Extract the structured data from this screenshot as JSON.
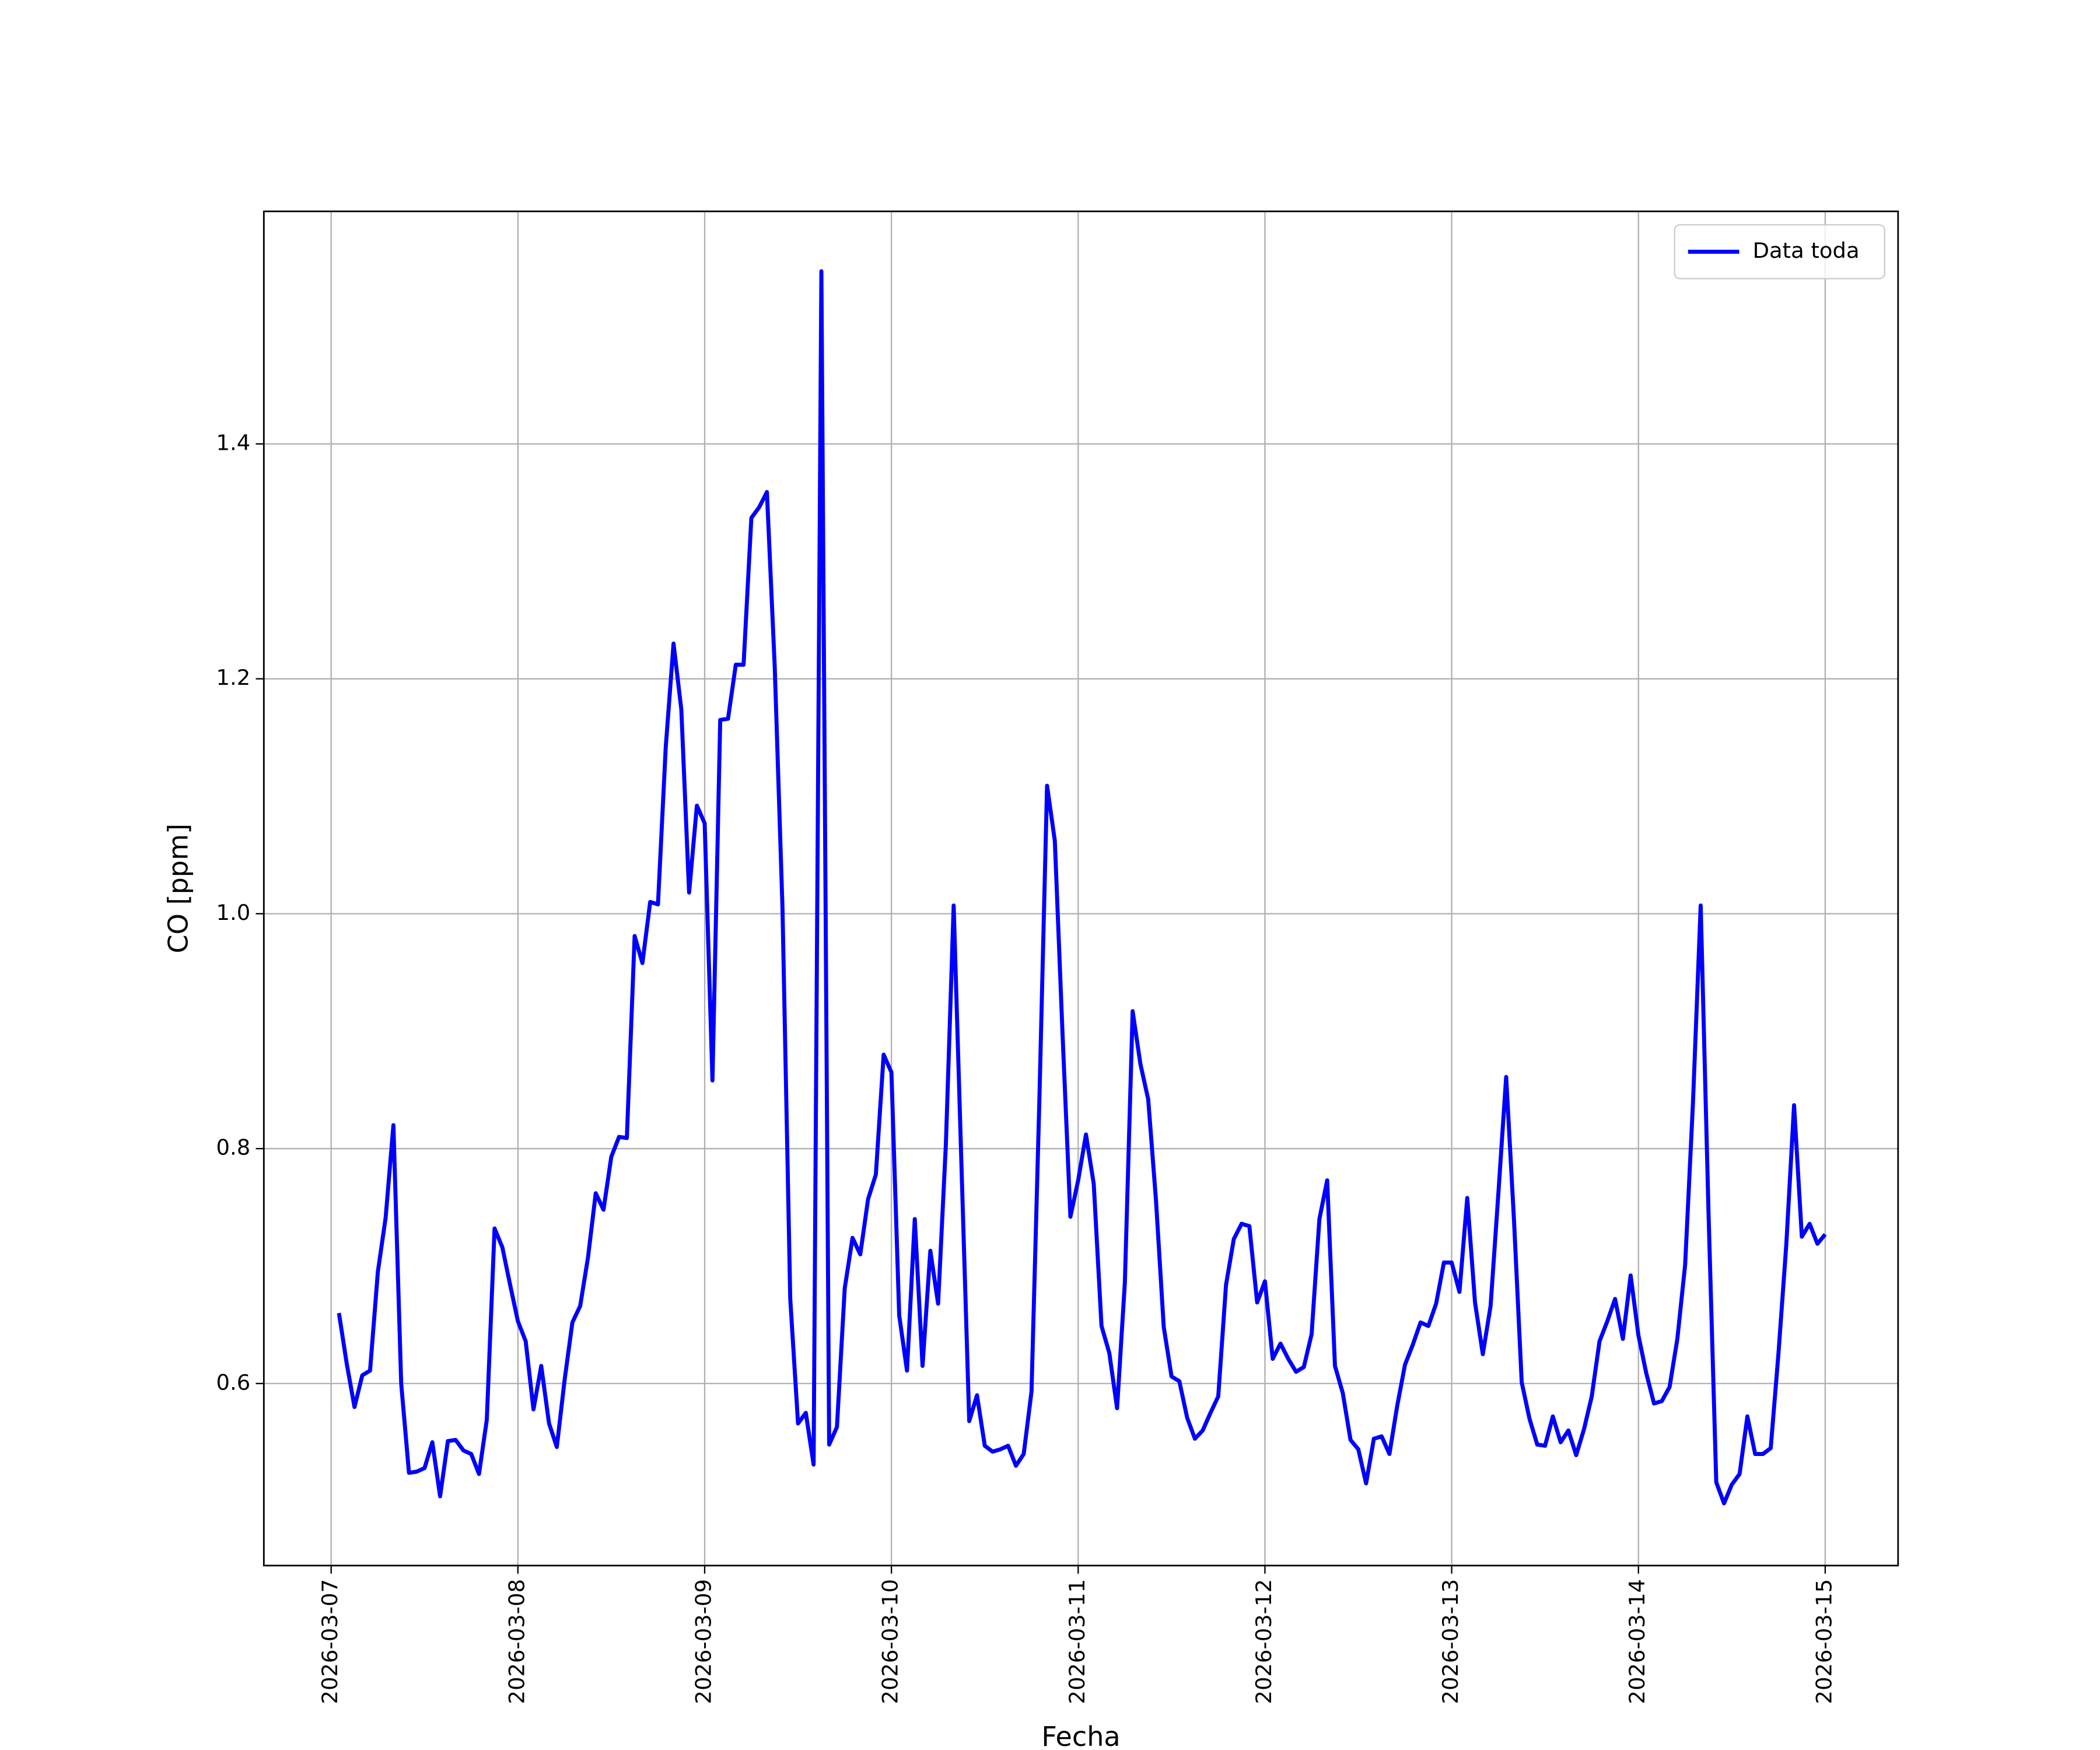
{
  "chart_data": {
    "type": "line",
    "xlabel": "Fecha",
    "ylabel": "CO [ppm]",
    "x": [
      "2026-03-07 01:00",
      "2026-03-07 02:00",
      "2026-03-07 03:00",
      "2026-03-07 04:00",
      "2026-03-07 05:00",
      "2026-03-07 06:00",
      "2026-03-07 07:00",
      "2026-03-07 08:00",
      "2026-03-07 09:00",
      "2026-03-07 10:00",
      "2026-03-07 11:00",
      "2026-03-07 12:00",
      "2026-03-07 13:00",
      "2026-03-07 14:00",
      "2026-03-07 15:00",
      "2026-03-07 16:00",
      "2026-03-07 17:00",
      "2026-03-07 18:00",
      "2026-03-07 19:00",
      "2026-03-07 20:00",
      "2026-03-07 21:00",
      "2026-03-07 22:00",
      "2026-03-07 23:00",
      "2026-03-08 00:00",
      "2026-03-08 01:00",
      "2026-03-08 02:00",
      "2026-03-08 03:00",
      "2026-03-08 04:00",
      "2026-03-08 05:00",
      "2026-03-08 06:00",
      "2026-03-08 07:00",
      "2026-03-08 08:00",
      "2026-03-08 09:00",
      "2026-03-08 10:00",
      "2026-03-08 11:00",
      "2026-03-08 12:00",
      "2026-03-08 13:00",
      "2026-03-08 14:00",
      "2026-03-08 15:00",
      "2026-03-08 16:00",
      "2026-03-08 17:00",
      "2026-03-08 18:00",
      "2026-03-08 19:00",
      "2026-03-08 20:00",
      "2026-03-08 21:00",
      "2026-03-08 22:00",
      "2026-03-08 23:00",
      "2026-03-09 00:00",
      "2026-03-09 01:00",
      "2026-03-09 02:00",
      "2026-03-09 03:00",
      "2026-03-09 04:00",
      "2026-03-09 05:00",
      "2026-03-09 06:00",
      "2026-03-09 07:00",
      "2026-03-09 08:00",
      "2026-03-09 09:00",
      "2026-03-09 10:00",
      "2026-03-09 11:00",
      "2026-03-09 12:00",
      "2026-03-09 13:00",
      "2026-03-09 14:00",
      "2026-03-09 15:00",
      "2026-03-09 16:00",
      "2026-03-09 17:00",
      "2026-03-09 18:00",
      "2026-03-09 19:00",
      "2026-03-09 20:00",
      "2026-03-09 21:00",
      "2026-03-09 22:00",
      "2026-03-09 23:00",
      "2026-03-10 00:00",
      "2026-03-10 01:00",
      "2026-03-10 02:00",
      "2026-03-10 03:00",
      "2026-03-10 04:00",
      "2026-03-10 05:00",
      "2026-03-10 06:00",
      "2026-03-10 07:00",
      "2026-03-10 08:00",
      "2026-03-10 09:00",
      "2026-03-10 10:00",
      "2026-03-10 11:00",
      "2026-03-10 12:00",
      "2026-03-10 13:00",
      "2026-03-10 14:00",
      "2026-03-10 15:00",
      "2026-03-10 16:00",
      "2026-03-10 17:00",
      "2026-03-10 18:00",
      "2026-03-10 19:00",
      "2026-03-10 20:00",
      "2026-03-10 21:00",
      "2026-03-10 22:00",
      "2026-03-10 23:00",
      "2026-03-11 00:00",
      "2026-03-11 01:00",
      "2026-03-11 02:00",
      "2026-03-11 03:00",
      "2026-03-11 04:00",
      "2026-03-11 05:00",
      "2026-03-11 06:00",
      "2026-03-11 07:00",
      "2026-03-11 08:00",
      "2026-03-11 09:00",
      "2026-03-11 10:00",
      "2026-03-11 11:00",
      "2026-03-11 12:00",
      "2026-03-11 13:00",
      "2026-03-11 14:00",
      "2026-03-11 15:00",
      "2026-03-11 16:00",
      "2026-03-11 17:00",
      "2026-03-11 18:00",
      "2026-03-11 19:00",
      "2026-03-11 20:00",
      "2026-03-11 21:00",
      "2026-03-11 22:00",
      "2026-03-11 23:00",
      "2026-03-12 00:00",
      "2026-03-12 01:00",
      "2026-03-12 02:00",
      "2026-03-12 03:00",
      "2026-03-12 04:00",
      "2026-03-12 05:00",
      "2026-03-12 06:00",
      "2026-03-12 07:00",
      "2026-03-12 08:00",
      "2026-03-12 09:00",
      "2026-03-12 10:00",
      "2026-03-12 11:00",
      "2026-03-12 12:00",
      "2026-03-12 13:00",
      "2026-03-12 14:00",
      "2026-03-12 15:00",
      "2026-03-12 16:00",
      "2026-03-12 17:00",
      "2026-03-12 18:00",
      "2026-03-12 19:00",
      "2026-03-12 20:00",
      "2026-03-12 21:00",
      "2026-03-12 22:00",
      "2026-03-12 23:00",
      "2026-03-13 00:00",
      "2026-03-13 01:00",
      "2026-03-13 02:00",
      "2026-03-13 03:00",
      "2026-03-13 04:00",
      "2026-03-13 05:00",
      "2026-03-13 06:00",
      "2026-03-13 07:00",
      "2026-03-13 08:00",
      "2026-03-13 09:00",
      "2026-03-13 10:00",
      "2026-03-13 11:00",
      "2026-03-13 12:00",
      "2026-03-13 13:00",
      "2026-03-13 14:00",
      "2026-03-13 15:00",
      "2026-03-13 16:00",
      "2026-03-13 17:00",
      "2026-03-13 18:00",
      "2026-03-13 19:00",
      "2026-03-13 20:00",
      "2026-03-13 21:00",
      "2026-03-13 22:00",
      "2026-03-13 23:00",
      "2026-03-14 00:00",
      "2026-03-14 01:00",
      "2026-03-14 02:00",
      "2026-03-14 03:00",
      "2026-03-14 04:00",
      "2026-03-14 05:00",
      "2026-03-14 06:00",
      "2026-03-14 07:00",
      "2026-03-14 08:00",
      "2026-03-14 09:00",
      "2026-03-14 10:00",
      "2026-03-14 11:00",
      "2026-03-14 12:00",
      "2026-03-14 13:00",
      "2026-03-14 14:00",
      "2026-03-14 15:00",
      "2026-03-14 16:00",
      "2026-03-14 17:00",
      "2026-03-14 18:00",
      "2026-03-14 19:00",
      "2026-03-14 20:00",
      "2026-03-14 21:00",
      "2026-03-14 22:00",
      "2026-03-14 23:00",
      "2026-03-15 00:00"
    ],
    "series": [
      {
        "name": "Data toda",
        "color": "#0000ff",
        "values": [
          0.66,
          0.617,
          0.58,
          0.607,
          0.611,
          0.695,
          0.741,
          0.82,
          0.6,
          0.524,
          0.525,
          0.528,
          0.55,
          0.504,
          0.551,
          0.552,
          0.543,
          0.54,
          0.523,
          0.569,
          0.732,
          0.716,
          0.684,
          0.653,
          0.636,
          0.578,
          0.615,
          0.566,
          0.546,
          0.603,
          0.652,
          0.666,
          0.707,
          0.762,
          0.748,
          0.793,
          0.81,
          0.809,
          0.981,
          0.958,
          1.01,
          1.008,
          1.142,
          1.23,
          1.174,
          1.018,
          1.092,
          1.077,
          0.858,
          1.165,
          1.166,
          1.212,
          1.212,
          1.337,
          1.346,
          1.359,
          1.211,
          1.005,
          0.672,
          0.566,
          0.575,
          0.531,
          1.547,
          0.548,
          0.563,
          0.681,
          0.724,
          0.71,
          0.757,
          0.778,
          0.88,
          0.865,
          0.658,
          0.611,
          0.74,
          0.615,
          0.713,
          0.668,
          0.804,
          1.007,
          0.786,
          0.568,
          0.59,
          0.547,
          0.542,
          0.544,
          0.547,
          0.53,
          0.54,
          0.593,
          0.838,
          1.109,
          1.062,
          0.896,
          0.742,
          0.773,
          0.812,
          0.77,
          0.649,
          0.626,
          0.579,
          0.686,
          0.917,
          0.872,
          0.842,
          0.756,
          0.648,
          0.606,
          0.602,
          0.571,
          0.553,
          0.56,
          0.575,
          0.589,
          0.684,
          0.723,
          0.736,
          0.734,
          0.669,
          0.687,
          0.621,
          0.634,
          0.621,
          0.61,
          0.614,
          0.642,
          0.74,
          0.773,
          0.615,
          0.592,
          0.552,
          0.544,
          0.515,
          0.553,
          0.555,
          0.54,
          0.581,
          0.616,
          0.633,
          0.652,
          0.649,
          0.668,
          0.703,
          0.703,
          0.678,
          0.758,
          0.669,
          0.625,
          0.666,
          0.762,
          0.861,
          0.74,
          0.601,
          0.57,
          0.548,
          0.547,
          0.572,
          0.55,
          0.56,
          0.539,
          0.561,
          0.589,
          0.636,
          0.653,
          0.672,
          0.638,
          0.692,
          0.641,
          0.609,
          0.583,
          0.585,
          0.597,
          0.638,
          0.701,
          0.838,
          1.007,
          0.747,
          0.516,
          0.498,
          0.514,
          0.523,
          0.572,
          0.54,
          0.54,
          0.545,
          0.626,
          0.718,
          0.837,
          0.725,
          0.736,
          0.719,
          0.727
        ]
      }
    ],
    "xlim": [
      "2026-03-06 15:21",
      "2026-03-15 09:22"
    ],
    "xticks": [
      "2026-03-07",
      "2026-03-08",
      "2026-03-09",
      "2026-03-10",
      "2026-03-11",
      "2026-03-12",
      "2026-03-13",
      "2026-03-14",
      "2026-03-15"
    ],
    "ylim": [
      0.445,
      1.598
    ],
    "yticks": [
      0.6,
      0.8,
      {
        "value": 1,
        "label": "1.0"
      },
      1.2,
      1.4
    ],
    "grid": true,
    "legend": "upper right"
  }
}
